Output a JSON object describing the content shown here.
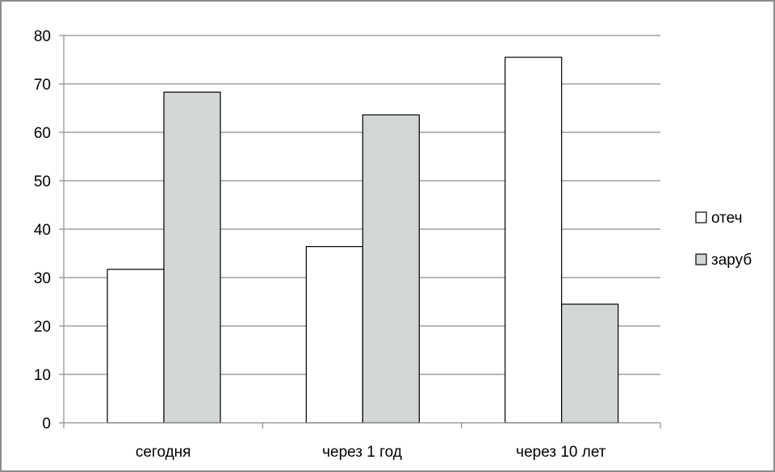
{
  "chart_data": {
    "type": "bar",
    "categories": [
      "сегодня",
      "через 1 год",
      "через 10 лет"
    ],
    "series": [
      {
        "name": "отеч",
        "values": [
          31.7,
          36.4,
          75.5
        ],
        "color": "#ffffff"
      },
      {
        "name": "заруб",
        "values": [
          68.3,
          63.6,
          24.5
        ],
        "color": "#d3d6d7"
      }
    ],
    "ylim": [
      0,
      80
    ],
    "yticks": [
      0,
      10,
      20,
      30,
      40,
      50,
      60,
      70,
      80
    ],
    "grid": true,
    "legend_position": "right",
    "bar_stroke": "#000000",
    "grid_color": "#8c8c8c"
  }
}
